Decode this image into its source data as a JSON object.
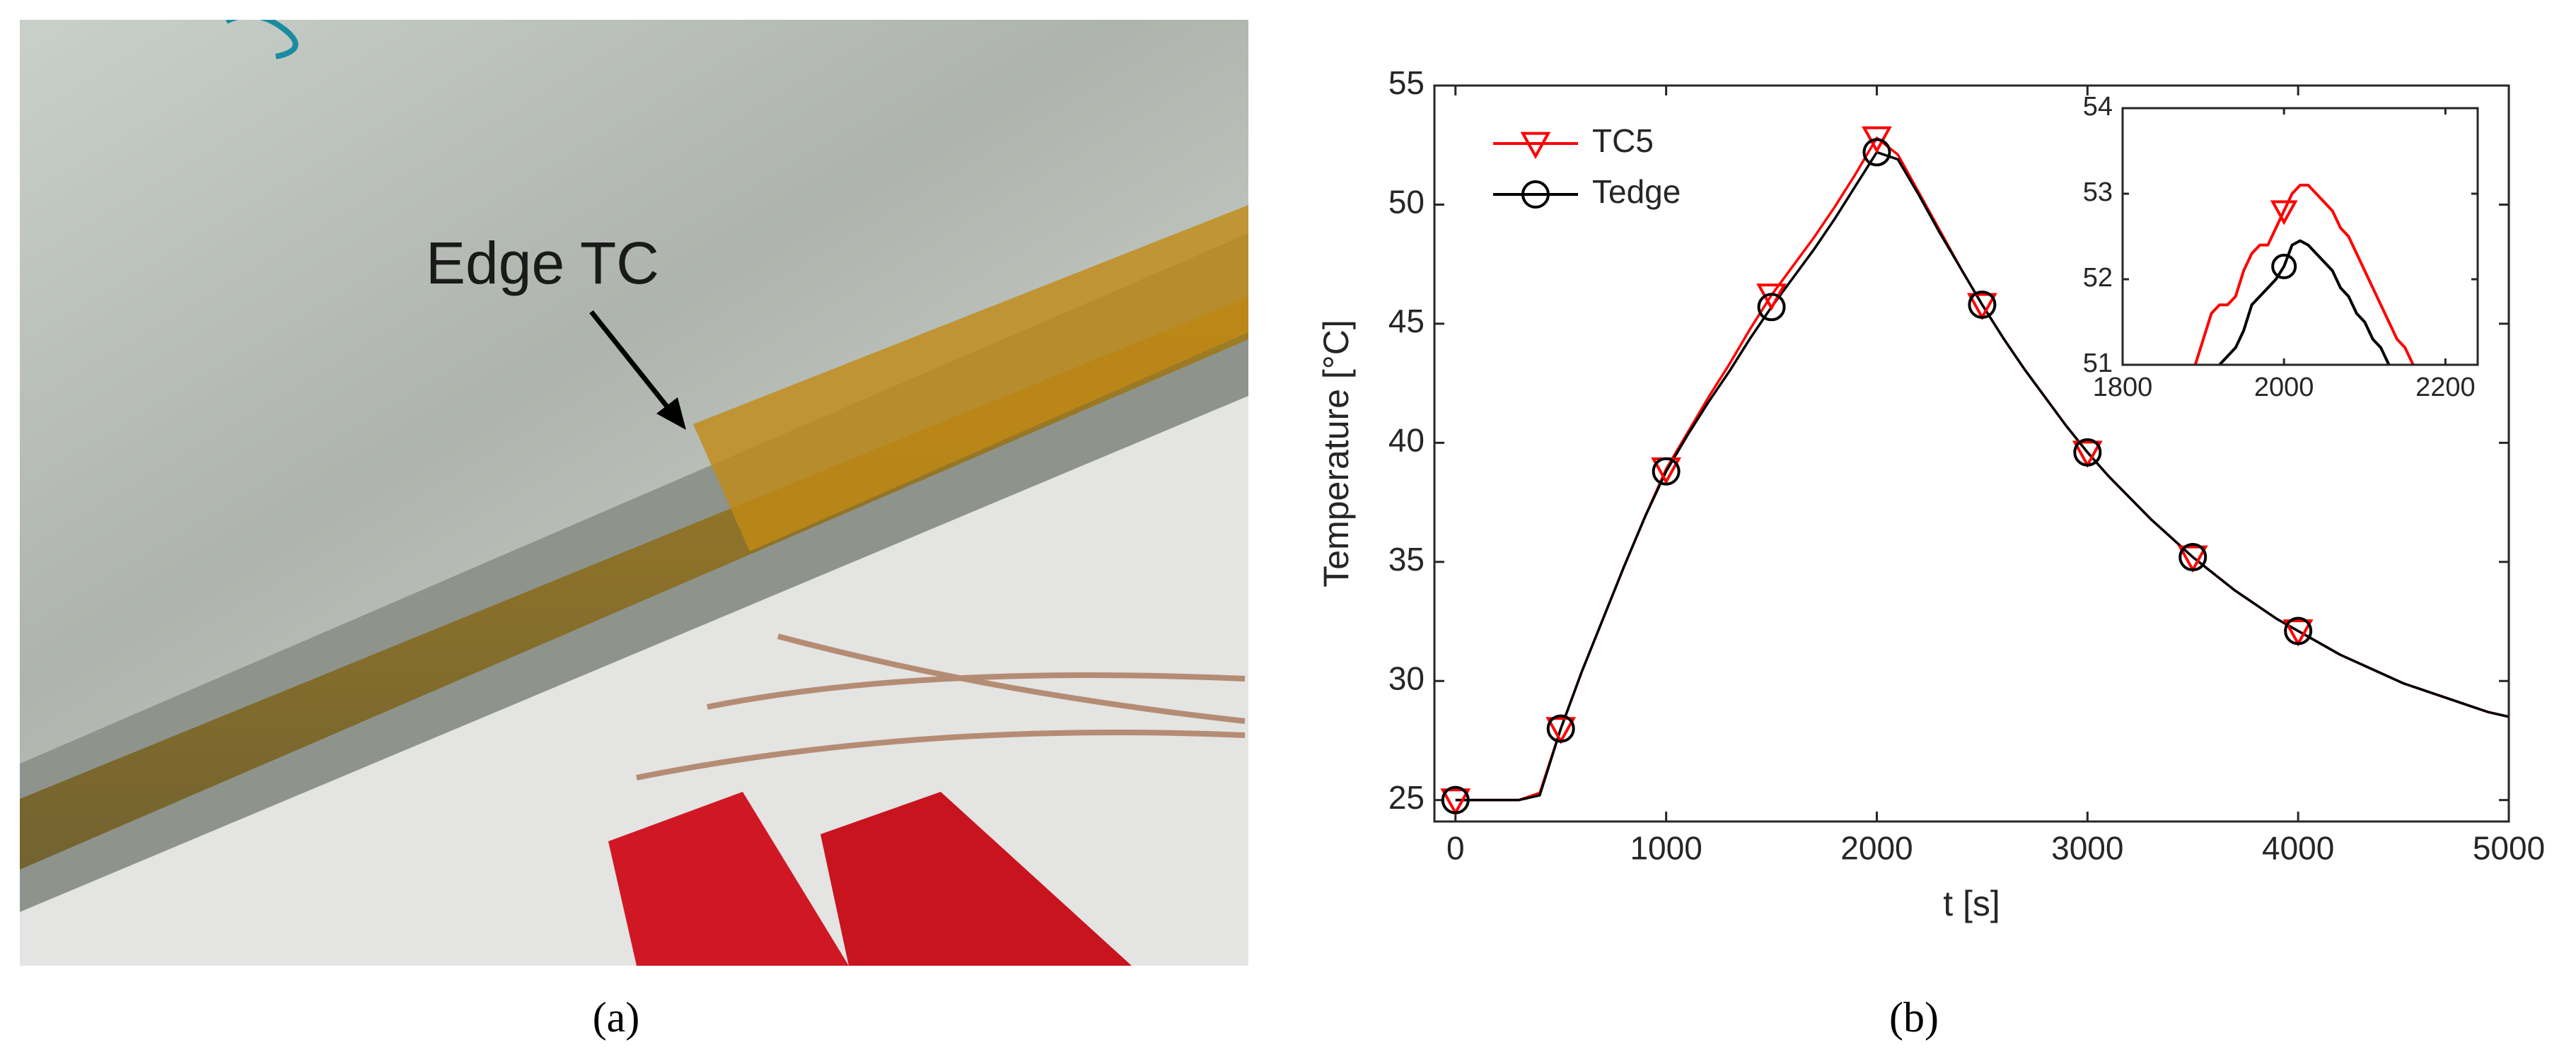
{
  "photo": {
    "annotation": "Edge TC",
    "caption": "(a)"
  },
  "chart_data": [
    {
      "type": "line",
      "caption": "(b)",
      "xlabel": "t [s]",
      "ylabel": "Temperature [°C]",
      "xlim": [
        -100,
        5000
      ],
      "ylim": [
        24.1,
        55
      ],
      "xticks": [
        0,
        1000,
        2000,
        3000,
        4000,
        5000
      ],
      "yticks": [
        25,
        30,
        35,
        40,
        45,
        50,
        55
      ],
      "grid": false,
      "legend": "upper-left",
      "marker_x": [
        0,
        500,
        1000,
        1500,
        2000,
        2500,
        3000,
        3500,
        4000
      ],
      "x": [
        0,
        100,
        200,
        300,
        400,
        500,
        600,
        700,
        800,
        900,
        1000,
        1100,
        1200,
        1300,
        1400,
        1500,
        1600,
        1700,
        1800,
        1900,
        2000,
        2100,
        2200,
        2300,
        2400,
        2500,
        2600,
        2700,
        2800,
        2900,
        3000,
        3100,
        3200,
        3300,
        3400,
        3500,
        3600,
        3700,
        3800,
        3900,
        4000,
        4100,
        4200,
        4300,
        4400,
        4500,
        4600,
        4700,
        4800,
        4900,
        5000
      ],
      "series": [
        {
          "name": "TC5",
          "color": "#ff0000",
          "marker": "triangle-down",
          "values": [
            25,
            25,
            25,
            25,
            25.3,
            28,
            30.4,
            32.6,
            34.8,
            36.9,
            38.9,
            40.4,
            41.9,
            43.3,
            44.8,
            46.2,
            47.4,
            48.6,
            49.9,
            51.3,
            52.8,
            52.1,
            50.5,
            48.9,
            47.3,
            45.8,
            44.4,
            43.1,
            41.9,
            40.7,
            39.6,
            38.6,
            37.7,
            36.8,
            36.0,
            35.2,
            34.5,
            33.8,
            33.2,
            32.6,
            32.1,
            31.6,
            31.1,
            30.7,
            30.3,
            29.9,
            29.6,
            29.3,
            29.0,
            28.7,
            28.5
          ]
        },
        {
          "name": "Tedge",
          "color": "#000000",
          "marker": "circle",
          "values": [
            25,
            25,
            25,
            25,
            25.2,
            28,
            30.4,
            32.6,
            34.8,
            36.9,
            38.8,
            40.3,
            41.7,
            43.0,
            44.4,
            45.7,
            46.9,
            48.1,
            49.4,
            50.8,
            52.2,
            51.9,
            50.4,
            48.8,
            47.3,
            45.8,
            44.4,
            43.1,
            41.9,
            40.7,
            39.6,
            38.6,
            37.7,
            36.8,
            36.0,
            35.2,
            34.5,
            33.8,
            33.2,
            32.6,
            32.1,
            31.6,
            31.1,
            30.7,
            30.3,
            29.9,
            29.6,
            29.3,
            29.0,
            28.7,
            28.5
          ]
        }
      ]
    },
    {
      "type": "line",
      "xlim": [
        1800,
        2240
      ],
      "ylim": [
        51,
        54
      ],
      "xticks": [
        1800,
        2000,
        2200
      ],
      "yticks": [
        51,
        52,
        53,
        54
      ],
      "grid": false,
      "marker_x": [
        2000
      ],
      "x": [
        1890,
        1900,
        1910,
        1920,
        1930,
        1940,
        1950,
        1960,
        1970,
        1980,
        1990,
        2000,
        2010,
        2020,
        2030,
        2040,
        2050,
        2060,
        2070,
        2080,
        2090,
        2100,
        2110,
        2120,
        2130,
        2140,
        2150,
        2160
      ],
      "series": [
        {
          "color": "#ff0000",
          "marker": "triangle-down",
          "values": [
            51.0,
            51.3,
            51.6,
            51.7,
            51.7,
            51.8,
            52.1,
            52.3,
            52.4,
            52.4,
            52.6,
            52.8,
            53.0,
            53.1,
            53.1,
            53.0,
            52.9,
            52.8,
            52.6,
            52.5,
            52.3,
            52.1,
            51.9,
            51.7,
            51.5,
            51.3,
            51.2,
            51.0
          ]
        },
        {
          "color": "#000000",
          "marker": "circle",
          "values": [
            null,
            null,
            null,
            51.0,
            51.1,
            51.2,
            51.4,
            51.7,
            51.8,
            51.9,
            52.0,
            52.15,
            52.4,
            52.45,
            52.4,
            52.3,
            52.2,
            52.1,
            51.9,
            51.8,
            51.6,
            51.5,
            51.3,
            51.2,
            51.0,
            null,
            null,
            null
          ]
        }
      ]
    }
  ]
}
